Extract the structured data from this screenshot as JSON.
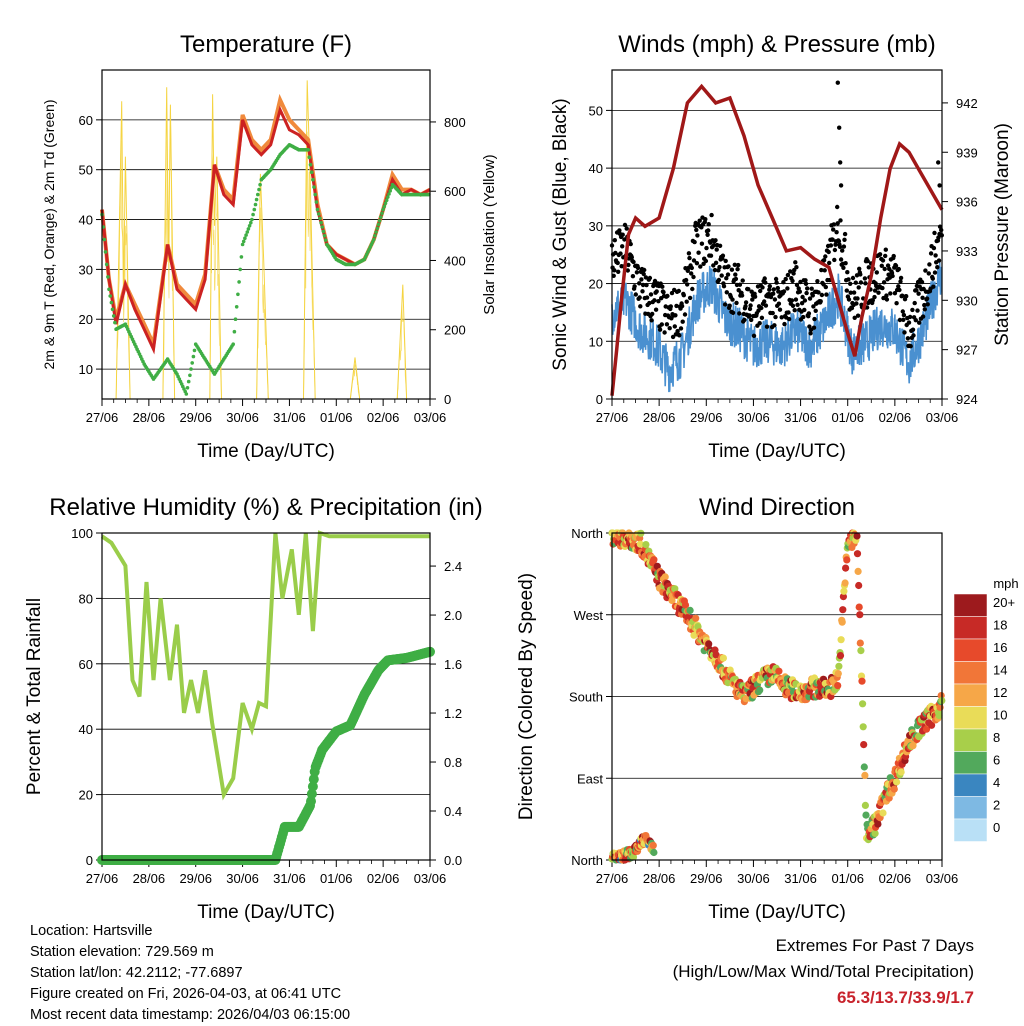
{
  "footer": {
    "location": "Location: Hartsville",
    "elevation": "Station elevation: 729.569 m",
    "latlon": "Station lat/lon: 42.2112; -77.6897",
    "created": "Figure created on Fri, 2026-04-03, at 06:41 UTC",
    "recent": "Most recent data timestamp: 2026/04/03 06:15:00"
  },
  "extremes": {
    "title": "Extremes For Past 7 Days",
    "subtitle": "(High/Low/Max Wind/Total Precipitation)",
    "values": "65.3/13.7/33.9/1.7"
  },
  "colors": {
    "temp2m": "#cc2222",
    "temp9m": "#f08a3c",
    "dewpoint": "#3fae45",
    "solar": "#f5d442",
    "wind": "#4a90d0",
    "gust": "#000000",
    "pressure": "#a01818",
    "rh": "#9acd4a",
    "precip": "#3fae45"
  },
  "chart_data": [
    {
      "id": "temperature",
      "type": "line",
      "title": "Temperature (F)",
      "xlabel": "Time (Day/UTC)",
      "ylabel": "2m & 9m T (Red, Orange) & 2m Td (Green)",
      "ylabel_right": "Solar Insolation (Yellow)",
      "x_ticks": [
        "27/06",
        "28/06",
        "29/06",
        "30/06",
        "31/06",
        "01/06",
        "02/06",
        "03/06"
      ],
      "ylim": [
        4,
        70
      ],
      "y_ticks": [
        10,
        20,
        30,
        40,
        50,
        60
      ],
      "ylim_right": [
        0,
        950
      ],
      "y_ticks_right": [
        0,
        200,
        400,
        600,
        800
      ],
      "series": [
        {
          "name": "2m T",
          "x": [
            0,
            0.15,
            0.3,
            0.5,
            0.7,
            0.9,
            1.1,
            1.4,
            1.6,
            1.8,
            2.0,
            2.2,
            2.4,
            2.6,
            2.8,
            3.0,
            3.2,
            3.4,
            3.6,
            3.8,
            4.0,
            4.2,
            4.4,
            4.6,
            4.8,
            5.0,
            5.2,
            5.4,
            5.6,
            5.8,
            6.0,
            6.2,
            6.4,
            6.6,
            6.8,
            7.0
          ],
          "values": [
            42,
            28,
            19,
            27,
            22,
            18,
            14,
            35,
            26,
            24,
            22,
            28,
            51,
            45,
            43,
            60,
            55,
            53,
            55,
            62,
            58,
            57,
            55,
            42,
            35,
            33,
            32,
            31,
            32,
            36,
            42,
            48,
            45,
            46,
            45,
            46
          ]
        },
        {
          "name": "9m T",
          "x": [
            0,
            0.15,
            0.3,
            0.5,
            0.7,
            0.9,
            1.1,
            1.4,
            1.6,
            1.8,
            2.0,
            2.2,
            2.4,
            2.6,
            2.8,
            3.0,
            3.2,
            3.4,
            3.6,
            3.8,
            4.0,
            4.2,
            4.4,
            4.6,
            4.8,
            5.0,
            5.2,
            5.4,
            5.6,
            5.8,
            6.0,
            6.2,
            6.4,
            6.6,
            6.8,
            7.0
          ],
          "values": [
            42,
            28,
            20,
            27,
            23,
            19,
            15,
            35,
            27,
            25,
            23,
            29,
            51,
            46,
            44,
            61,
            56,
            54,
            56,
            64,
            60,
            58,
            56,
            43,
            35,
            33,
            32,
            31,
            32,
            36,
            42,
            49,
            46,
            46,
            45,
            46
          ]
        },
        {
          "name": "2m Td",
          "x": [
            0,
            0.15,
            0.3,
            0.5,
            0.7,
            0.9,
            1.1,
            1.4,
            1.6,
            1.8,
            2.0,
            2.2,
            2.4,
            2.6,
            2.8,
            3.0,
            3.2,
            3.4,
            3.6,
            3.8,
            4.0,
            4.2,
            4.4,
            4.6,
            4.8,
            5.0,
            5.2,
            5.4,
            5.6,
            5.8,
            6.0,
            6.2,
            6.4,
            6.6,
            6.8,
            7.0
          ],
          "values": [
            41,
            26,
            18,
            19,
            15,
            11,
            8,
            12,
            9,
            5,
            15,
            12,
            9,
            12,
            15,
            35,
            40,
            48,
            50,
            53,
            55,
            54,
            54,
            42,
            35,
            32,
            31,
            31,
            32,
            36,
            42,
            47,
            45,
            45,
            45,
            45
          ]
        },
        {
          "name": "Solar",
          "x": [
            0.3,
            0.42,
            0.46,
            0.5,
            0.6,
            1.3,
            1.38,
            1.42,
            1.46,
            1.55,
            2.3,
            2.36,
            2.4,
            2.45,
            2.55,
            3.3,
            3.38,
            3.45,
            3.55,
            4.3,
            4.38,
            4.45,
            4.55,
            5.3,
            5.4,
            5.5,
            6.3,
            6.42,
            6.5
          ],
          "values": [
            0,
            860,
            300,
            700,
            0,
            0,
            900,
            400,
            850,
            0,
            0,
            880,
            500,
            700,
            0,
            0,
            650,
            400,
            0,
            0,
            920,
            600,
            0,
            0,
            120,
            0,
            0,
            330,
            0
          ]
        }
      ]
    },
    {
      "id": "winds",
      "type": "line",
      "title": "Winds (mph) & Pressure (mb)",
      "xlabel": "Time (Day/UTC)",
      "ylabel": "Sonic Wind & Gust (Blue, Black)",
      "ylabel_right": "Station Pressure (Maroon)",
      "x_ticks": [
        "27/06",
        "28/06",
        "29/06",
        "30/06",
        "31/06",
        "01/06",
        "02/06",
        "03/06"
      ],
      "ylim": [
        0,
        57
      ],
      "y_ticks": [
        0,
        10,
        20,
        30,
        40,
        50
      ],
      "ylim_right": [
        924,
        944
      ],
      "y_ticks_right": [
        924,
        927,
        930,
        933,
        936,
        939,
        942
      ],
      "series": [
        {
          "name": "Wind",
          "x": [
            0,
            0.3,
            0.6,
            0.9,
            1.2,
            1.5,
            1.8,
            2.1,
            2.4,
            2.7,
            3.0,
            3.3,
            3.6,
            3.9,
            4.2,
            4.5,
            4.8,
            5.1,
            5.4,
            5.7,
            6.0,
            6.3,
            6.6,
            6.9,
            7.0
          ],
          "values": [
            15,
            17,
            12,
            10,
            5,
            8,
            17,
            20,
            14,
            12,
            9,
            10,
            9,
            12,
            9,
            13,
            18,
            8,
            10,
            13,
            12,
            6,
            12,
            20,
            22
          ]
        },
        {
          "name": "Gust",
          "x": [
            0,
            0.3,
            0.6,
            0.9,
            1.2,
            1.5,
            1.8,
            2.1,
            2.4,
            2.7,
            3.0,
            3.3,
            3.6,
            3.9,
            4.2,
            4.5,
            4.8,
            5.1,
            5.4,
            5.7,
            6.0,
            6.3,
            6.6,
            6.9,
            7.0
          ],
          "values": [
            24,
            26,
            19,
            17,
            14,
            16,
            27,
            28,
            20,
            19,
            15,
            17,
            16,
            20,
            15,
            20,
            31,
            17,
            20,
            22,
            21,
            12,
            18,
            26,
            29
          ]
        },
        {
          "name": "Pressure",
          "x": [
            0,
            0.1,
            0.2,
            0.35,
            0.5,
            0.7,
            1.0,
            1.3,
            1.6,
            1.9,
            2.2,
            2.5,
            2.8,
            3.1,
            3.4,
            3.7,
            4.0,
            4.3,
            4.6,
            4.8,
            5.0,
            5.15,
            5.3,
            5.5,
            5.7,
            5.9,
            6.1,
            6.3,
            6.5,
            6.7,
            6.9,
            7.0
          ],
          "values": [
            924.2,
            927,
            930,
            934,
            935,
            934.5,
            935,
            938,
            942,
            943,
            942,
            942.3,
            940,
            937,
            935,
            933,
            933.2,
            932.5,
            932,
            930,
            928,
            926.6,
            929,
            931.5,
            935,
            938,
            939.5,
            939,
            938,
            937,
            936,
            935.5
          ]
        },
        {
          "name": "Gust outliers",
          "x": [
            4.79,
            4.82,
            4.84,
            4.86,
            6.92,
            6.95
          ],
          "values": [
            54.8,
            47,
            41,
            37,
            41,
            37
          ]
        }
      ]
    },
    {
      "id": "rh_precip",
      "type": "line",
      "title": "Relative Humidity (%) & Precipitation (in)",
      "xlabel": "Time (Day/UTC)",
      "ylabel": "Percent & Total Rainfall",
      "x_ticks": [
        "27/06",
        "28/06",
        "29/06",
        "30/06",
        "31/06",
        "01/06",
        "02/06",
        "03/06"
      ],
      "ylim": [
        0,
        100
      ],
      "y_ticks": [
        0,
        20,
        40,
        60,
        80,
        100
      ],
      "ylim_right": [
        0,
        2.67
      ],
      "y_ticks_right": [
        "0.0",
        "0.4",
        "0.8",
        "1.2",
        "1.6",
        "2.0",
        "2.4"
      ],
      "series": [
        {
          "name": "RH",
          "x": [
            0,
            0.2,
            0.5,
            0.65,
            0.8,
            0.95,
            1.1,
            1.25,
            1.45,
            1.6,
            1.75,
            1.9,
            2.05,
            2.2,
            2.35,
            2.6,
            2.8,
            3.0,
            3.2,
            3.35,
            3.5,
            3.7,
            3.85,
            4.05,
            4.2,
            4.35,
            4.5,
            4.65,
            4.85,
            5.0,
            5.5,
            6.0,
            6.5,
            7.0
          ],
          "values": [
            99,
            97,
            90,
            55,
            50,
            85,
            55,
            80,
            55,
            72,
            45,
            55,
            45,
            58,
            42,
            20,
            25,
            48,
            40,
            48,
            47,
            100,
            80,
            95,
            75,
            100,
            70,
            100,
            99,
            99,
            99,
            99,
            99,
            99
          ]
        },
        {
          "name": "Precip",
          "x": [
            0,
            1,
            2,
            3,
            3.7,
            3.9,
            4.2,
            4.45,
            4.55,
            4.7,
            5.0,
            5.3,
            5.6,
            5.9,
            6.1,
            6.5,
            7.0
          ],
          "values": [
            0,
            0,
            0,
            0,
            0,
            0.27,
            0.27,
            0.45,
            0.75,
            0.9,
            1.05,
            1.1,
            1.35,
            1.55,
            1.63,
            1.65,
            1.7
          ]
        }
      ]
    },
    {
      "id": "wind_direction",
      "type": "scatter",
      "title": "Wind Direction",
      "xlabel": "Time (Day/UTC)",
      "ylabel": "Direction (Colored By Speed)",
      "x_ticks": [
        "27/06",
        "28/06",
        "29/06",
        "30/06",
        "31/06",
        "01/06",
        "02/06",
        "03/06"
      ],
      "y_ticks": [
        "North",
        "East",
        "South",
        "West",
        "North"
      ],
      "ylim": [
        0,
        360
      ],
      "legend_title": "mph",
      "legend_labels": [
        "20+",
        "18",
        "16",
        "14",
        "12",
        "10",
        "8",
        "6",
        "4",
        "2",
        "0"
      ],
      "legend_colors": [
        "#9d1a1d",
        "#c72a26",
        "#e74a2b",
        "#f17638",
        "#f6a748",
        "#e9dc58",
        "#a8cf4a",
        "#52a95c",
        "#3a86c0",
        "#7eb9e3",
        "#b9e0f6"
      ],
      "series": [
        {
          "name": "Direction",
          "x": [
            0,
            0.3,
            0.6,
            0.8,
            1.0,
            1.3,
            1.6,
            1.9,
            2.2,
            2.5,
            2.8,
            3.1,
            3.4,
            3.7,
            4.0,
            4.3,
            4.6,
            4.8,
            5.0,
            5.2,
            5.4,
            5.6,
            5.8,
            6.0,
            6.3,
            6.6,
            6.9,
            7.0
          ],
          "values": [
            358,
            355,
            350,
            330,
            310,
            290,
            270,
            245,
            225,
            200,
            180,
            195,
            205,
            190,
            185,
            190,
            188,
            200,
            350,
            355,
            30,
            40,
            70,
            90,
            130,
            150,
            165,
            175
          ]
        },
        {
          "name": "Direction (early)",
          "x": [
            0,
            0.3,
            0.5,
            0.7,
            0.9
          ],
          "values": [
            2,
            5,
            10,
            25,
            8
          ]
        }
      ]
    }
  ]
}
